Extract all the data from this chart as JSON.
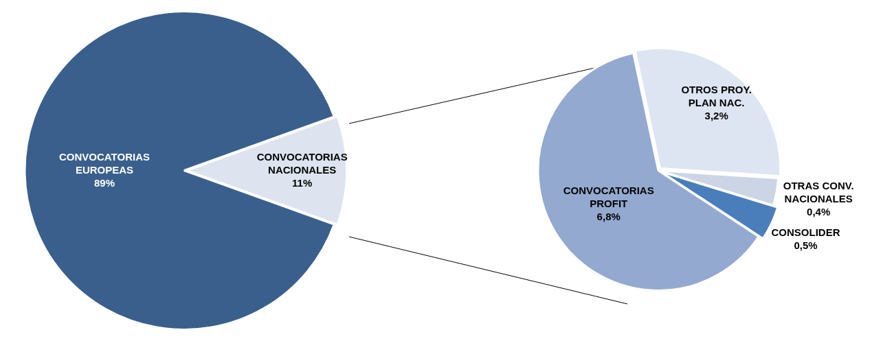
{
  "chart_data": [
    {
      "type": "pie",
      "categories": [
        "CONVOCATORIAS EUROPEAS",
        "CONVOCATORIAS NACIONALES"
      ],
      "values": [
        89,
        11
      ],
      "value_labels": [
        "89%",
        "11%"
      ],
      "colors": [
        "#3a5f8c",
        "#dde4f0"
      ]
    },
    {
      "type": "pie",
      "categories": [
        "OTROS PROY. PLAN NAC.",
        "OTRAS CONV. NACIONALES",
        "CONSOLIDER",
        "CONVOCATORIAS PROFIT"
      ],
      "values": [
        3.2,
        0.4,
        0.5,
        6.8
      ],
      "value_labels": [
        "3,2%",
        "0,4%",
        "0,5%",
        "6,8%"
      ],
      "colors": [
        "#dde5f2",
        "#ccd5e6",
        "#4a7ebb",
        "#94a9d0"
      ]
    }
  ]
}
